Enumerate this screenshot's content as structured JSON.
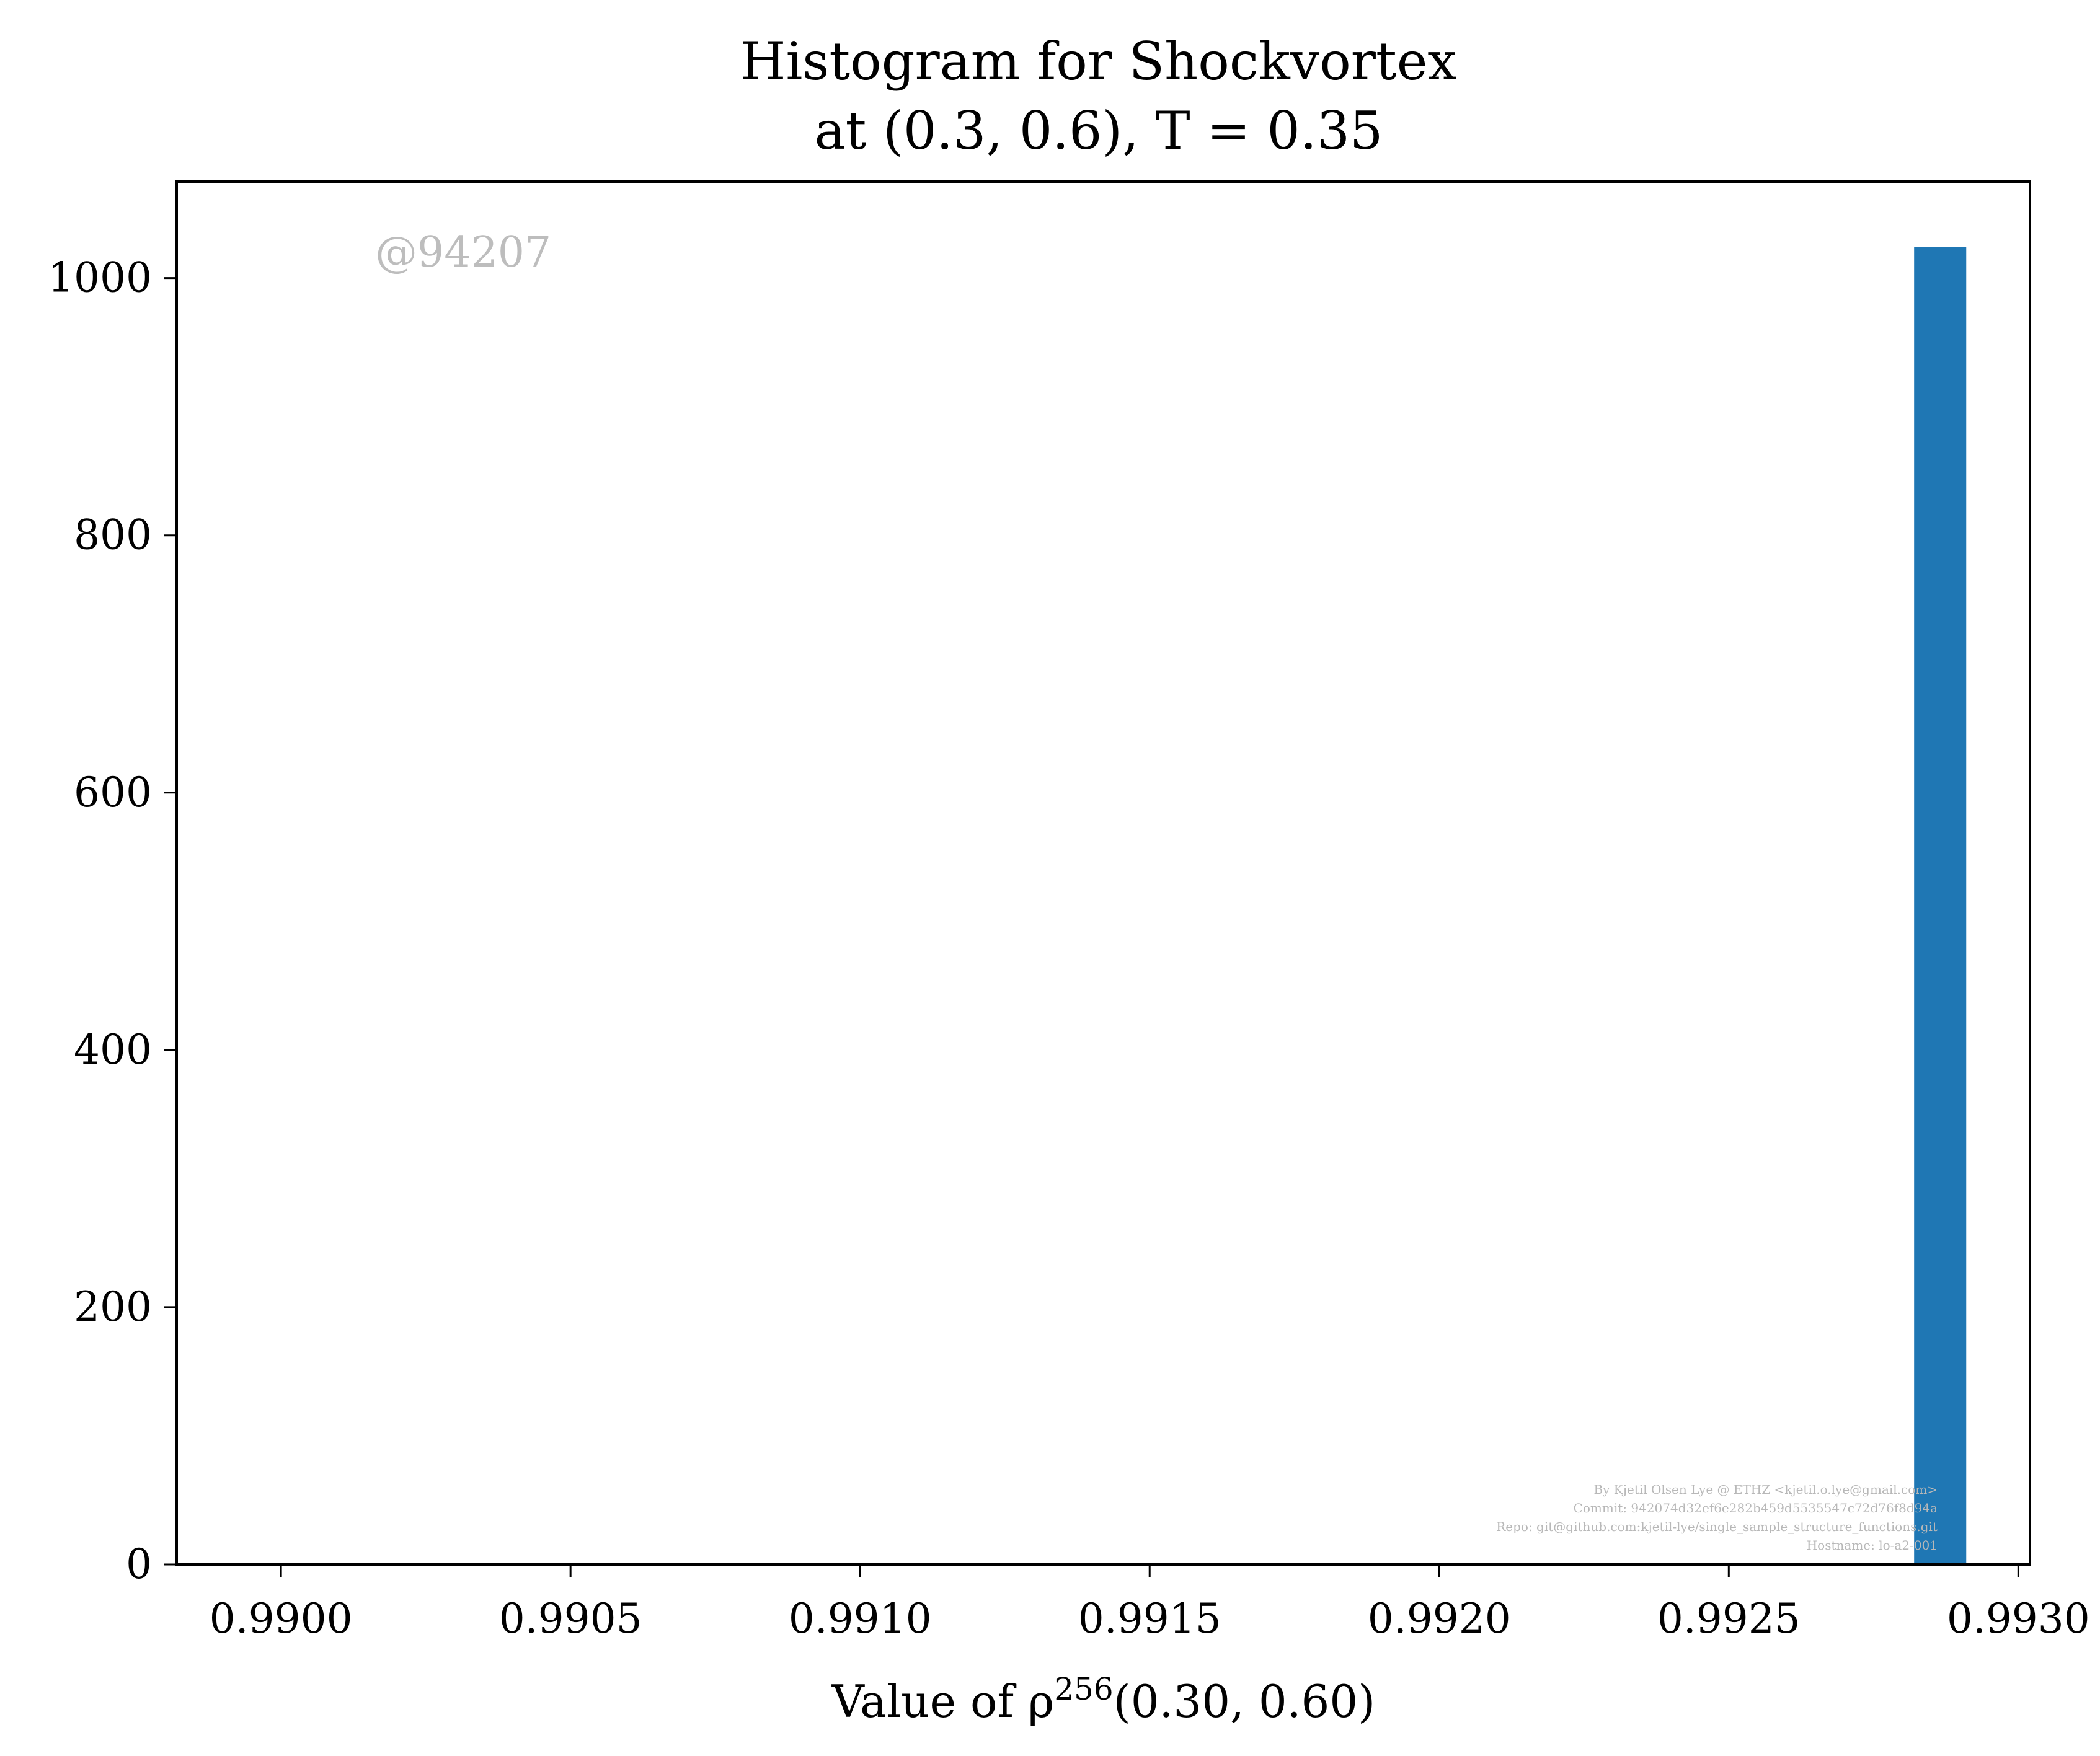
{
  "chart_data": {
    "type": "bar",
    "title_line1": "Histogram for Shockvortex",
    "title_line2": "at (0.3, 0.6), T = 0.35",
    "xlabel_prefix": "Value of ρ",
    "xlabel_sup": "256",
    "xlabel_suffix": "(0.30, 0.60)",
    "ylabel": "",
    "xlim": [
      0.98982,
      0.99302
    ],
    "ylim": [
      0,
      1075
    ],
    "xticks": [
      0.99,
      0.9905,
      0.991,
      0.9915,
      0.992,
      0.9925,
      0.993
    ],
    "xtick_labels": [
      "0.9900",
      "0.9905",
      "0.9910",
      "0.9915",
      "0.9920",
      "0.9925",
      "0.9930"
    ],
    "yticks": [
      0,
      200,
      400,
      600,
      800,
      1000
    ],
    "ytick_labels": [
      "0",
      "200",
      "400",
      "600",
      "800",
      "1000"
    ],
    "bins": [
      {
        "x0": 0.99282,
        "x1": 0.99291,
        "count": 1024
      }
    ],
    "bar_color": "#1f77b4",
    "grid": false,
    "watermark": "@94207",
    "credits": [
      "By Kjetil Olsen Lye @ ETHZ <kjetil.o.lye@gmail.com>",
      "Commit: 942074d32ef6e282b459d5535547c72d76f8d94a",
      "Repo: git@github.com:kjetil-lye/single_sample_structure_functions.git",
      "Hostname: lo-a2-001"
    ]
  }
}
